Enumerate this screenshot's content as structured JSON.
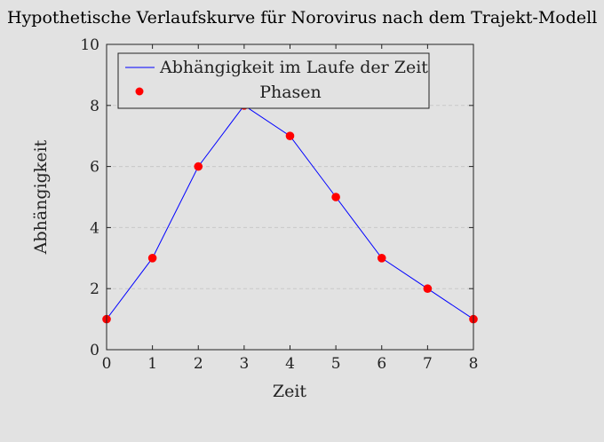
{
  "chart_data": {
    "type": "line",
    "title": "Hypothetische Verlaufskurve für Norovirus nach dem Trajekt-Modell",
    "xlabel": "Zeit",
    "ylabel": "Abhängigkeit",
    "xlim": [
      0,
      8
    ],
    "ylim": [
      0,
      10
    ],
    "x_ticks": [
      0,
      1,
      2,
      3,
      4,
      5,
      6,
      7,
      8
    ],
    "y_ticks": [
      0,
      2,
      4,
      6,
      8,
      10
    ],
    "grid": "horizontal dashed",
    "legend_position": "top",
    "series": [
      {
        "name": "Abhängigkeit im Laufe der Zeit",
        "mark": "line",
        "color": "#0000ff",
        "x": [
          0,
          1,
          2,
          3,
          4,
          5,
          6,
          7,
          8
        ],
        "y": [
          1,
          3,
          6,
          8,
          7,
          5,
          3,
          2,
          1
        ]
      },
      {
        "name": "Phasen",
        "mark": "marker",
        "color": "#ff0000",
        "x": [
          0,
          1,
          2,
          3,
          4,
          5,
          6,
          7,
          8
        ],
        "y": [
          1,
          3,
          6,
          8,
          7,
          5,
          3,
          2,
          1
        ]
      }
    ]
  }
}
